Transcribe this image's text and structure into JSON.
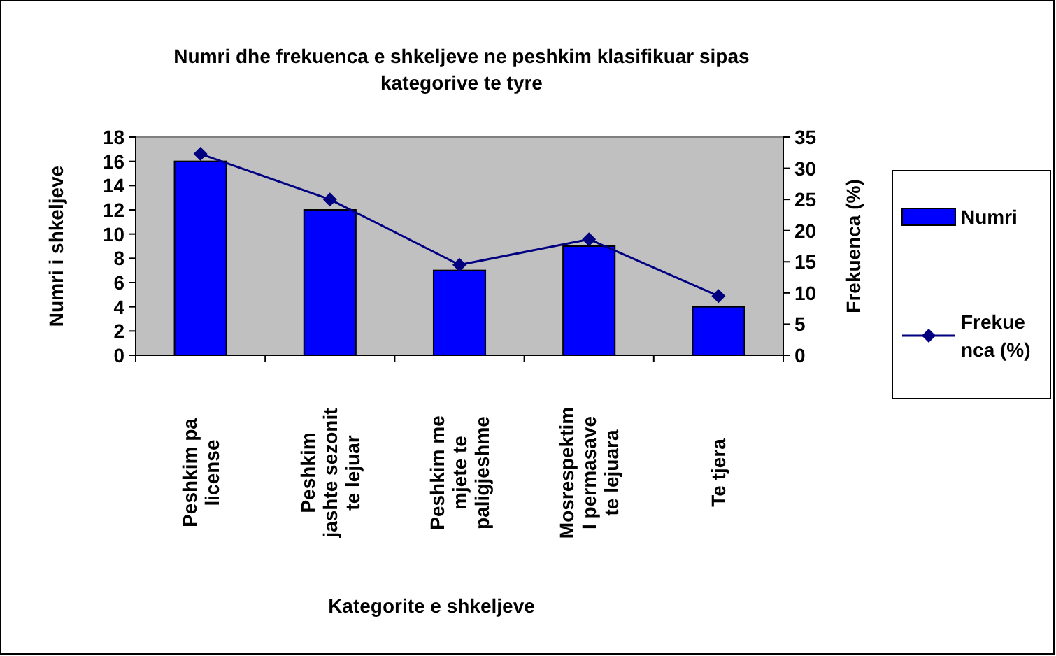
{
  "chart_data": {
    "type": "bar",
    "title": "Numri dhe frekuenca e shkeljeve ne peshkim klasifikuar sipas\nkategorive te tyre",
    "xlabel": "Kategorite e shkeljeve",
    "ylabel": "Numri i shkeljeve",
    "y2label": "Frekuenca (%)",
    "categories": [
      "Peshkim pa\nlicense",
      "Peshkim\njashte sezonit\nte lejuar",
      "Peshkim me\nmjete te\npaligjeshme",
      "Mosrespektim\nI permasave\nte lejuara",
      "Te tjera"
    ],
    "series": [
      {
        "name": "Numri",
        "color": "#0000ff",
        "values": [
          16,
          12,
          7,
          9,
          4
        ]
      },
      {
        "name": "Frekuenca (%)",
        "type": "line",
        "axis": "y2",
        "color": "#000080",
        "marker": "diamond",
        "values": [
          32.3,
          25,
          14.5,
          18.6,
          9.5
        ]
      }
    ],
    "ylim": [
      0,
      18
    ],
    "yticks": [
      0,
      2,
      4,
      6,
      8,
      10,
      12,
      14,
      16,
      18
    ],
    "y2lim": [
      0,
      35
    ],
    "y2ticks": [
      0,
      5,
      10,
      15,
      20,
      25,
      30,
      35
    ],
    "grid": false,
    "legend": "right"
  }
}
